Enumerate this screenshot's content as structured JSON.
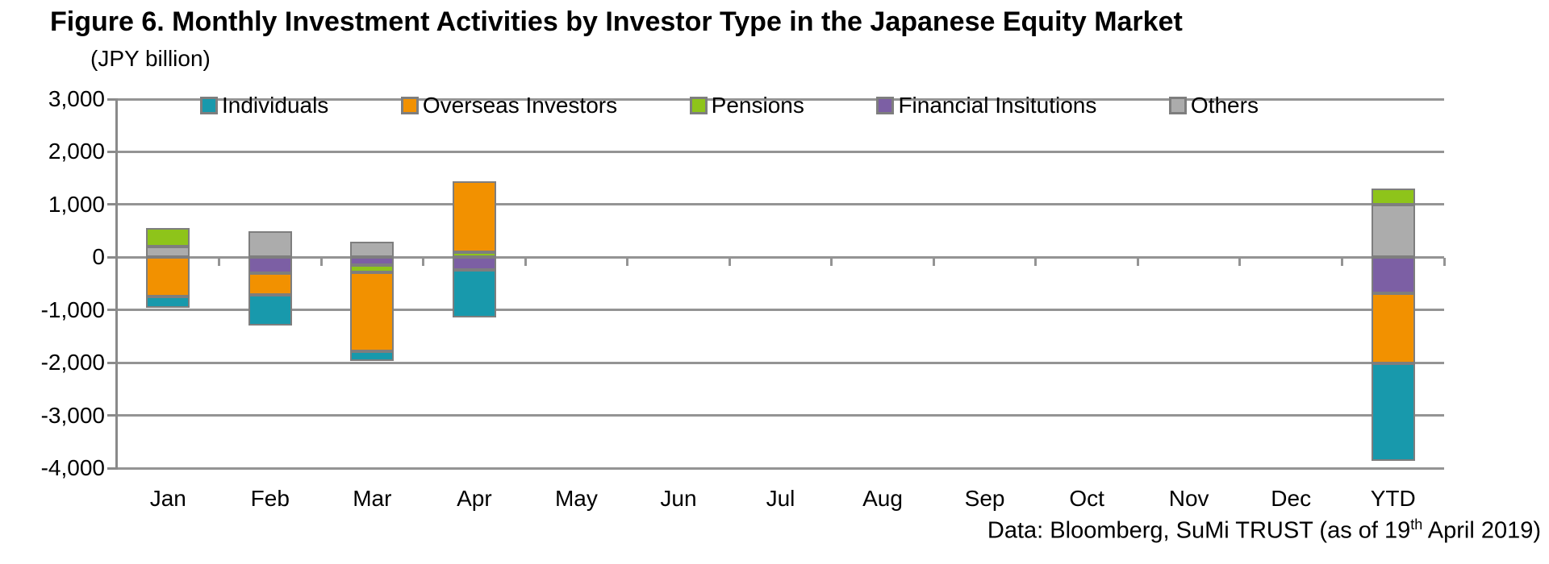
{
  "title": "Figure 6. Monthly Investment Activities by Investor Type in the Japanese Equity Market",
  "units_label": "(JPY billion)",
  "footer": {
    "prefix": "Data: Bloomberg, SuMi TRUST (as of 19",
    "superscript": "th",
    "suffix": " April 2019)"
  },
  "chart_data": {
    "type": "bar",
    "stacked": true,
    "title": "Figure 6. Monthly Investment Activities by Investor Type in the Japanese Equity Market",
    "ylabel": "(JPY billion)",
    "categories": [
      "Jan",
      "Feb",
      "Mar",
      "Apr",
      "May",
      "Jun",
      "Jul",
      "Aug",
      "Sep",
      "Oct",
      "Nov",
      "Dec",
      "YTD"
    ],
    "series": [
      {
        "name": "Individuals",
        "color": "#1899AC",
        "values": [
          -210,
          -570,
          -180,
          -900,
          0,
          0,
          0,
          0,
          0,
          0,
          0,
          0,
          -1860
        ]
      },
      {
        "name": "Overseas Investors",
        "color": "#F29100",
        "values": [
          -750,
          -420,
          -1500,
          1350,
          0,
          0,
          0,
          0,
          0,
          0,
          0,
          0,
          -1320
        ]
      },
      {
        "name": "Pensions",
        "color": "#8EC41A",
        "values": [
          350,
          0,
          -130,
          90,
          0,
          0,
          0,
          0,
          0,
          0,
          0,
          0,
          310
        ]
      },
      {
        "name": "Financial Insitutions",
        "color": "#7C5FA4",
        "values": [
          0,
          -300,
          -150,
          -240,
          0,
          0,
          0,
          0,
          0,
          0,
          0,
          0,
          -690
        ]
      },
      {
        "name": "Others",
        "color": "#ACACAC",
        "values": [
          200,
          500,
          300,
          0,
          0,
          0,
          0,
          0,
          0,
          0,
          0,
          0,
          1000
        ]
      }
    ],
    "stack_order_from_axis": [
      "Others",
      "Financial Insitutions",
      "Pensions",
      "Overseas Investors",
      "Individuals"
    ],
    "ylim": [
      -4000,
      3000
    ],
    "ytick_step": 1000,
    "ytick_labels": [
      "3,000",
      "2,000",
      "1,000",
      "0",
      "-1,000",
      "-2,000",
      "-3,000",
      "-4,000"
    ],
    "grid": true,
    "legend_position": "top-inside",
    "bar_outline_color": "#7E7E7E",
    "gridline_color": "#949494"
  }
}
